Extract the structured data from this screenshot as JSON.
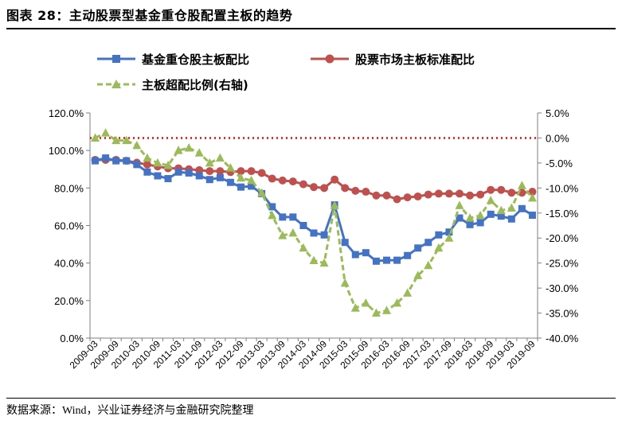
{
  "title": "图表 28：主动股票型基金重仓股配置主板的趋势",
  "source": "数据来源：Wind，兴业证券经济与金融研究院整理",
  "colors": {
    "series1": "#4472C4",
    "series2": "#C0504D",
    "series3": "#9BBB59",
    "zero_line": "#FF0000",
    "axis": "#7F7F7F"
  },
  "chart_data": {
    "type": "line",
    "categories": [
      "2009-03",
      "2009-06",
      "2009-09",
      "2009-12",
      "2010-03",
      "2010-06",
      "2010-09",
      "2010-12",
      "2011-03",
      "2011-06",
      "2011-09",
      "2011-12",
      "2012-03",
      "2012-06",
      "2012-09",
      "2012-12",
      "2013-03",
      "2013-06",
      "2013-09",
      "2013-12",
      "2014-03",
      "2014-06",
      "2014-09",
      "2014-12",
      "2015-03",
      "2015-06",
      "2015-09",
      "2015-12",
      "2016-03",
      "2016-06",
      "2016-09",
      "2016-12",
      "2017-03",
      "2017-06",
      "2017-09",
      "2017-12",
      "2018-03",
      "2018-06",
      "2018-09",
      "2018-12",
      "2019-03",
      "2019-06",
      "2019-09"
    ],
    "xtick_labels": [
      "2009-03",
      "2009-09",
      "2010-03",
      "2010-09",
      "2011-03",
      "2011-09",
      "2012-03",
      "2012-09",
      "2013-03",
      "2013-09",
      "2014-03",
      "2014-09",
      "2015-03",
      "2015-09",
      "2016-03",
      "2016-09",
      "2017-03",
      "2017-09",
      "2018-03",
      "2018-09",
      "2019-03",
      "2019-09"
    ],
    "series": [
      {
        "name": "基金重仓股主板配比",
        "axis": "left",
        "marker": "square",
        "values": [
          94.5,
          96.0,
          94.5,
          94.5,
          92.5,
          88.5,
          86.5,
          85.0,
          88.5,
          88.0,
          86.5,
          84.5,
          85.5,
          83.0,
          80.5,
          81.0,
          77.0,
          70.0,
          64.5,
          64.5,
          60.0,
          56.0,
          55.0,
          71.0,
          51.0,
          44.5,
          45.5,
          41.0,
          41.5,
          41.5,
          44.0,
          48.0,
          51.0,
          55.0,
          56.5,
          64.0,
          60.5,
          61.5,
          66.0,
          65.0,
          63.5,
          69.0,
          65.5
        ]
      },
      {
        "name": "股票市场主板标准配比",
        "axis": "left",
        "marker": "circle",
        "values": [
          95.0,
          95.0,
          95.0,
          94.5,
          93.5,
          92.5,
          91.5,
          90.5,
          90.5,
          90.0,
          89.5,
          89.0,
          89.0,
          88.5,
          89.0,
          89.0,
          88.0,
          85.0,
          84.0,
          83.5,
          82.0,
          80.5,
          80.0,
          84.5,
          80.0,
          78.5,
          78.0,
          76.0,
          76.0,
          74.0,
          75.0,
          75.5,
          76.5,
          77.0,
          77.0,
          77.0,
          76.0,
          76.5,
          79.0,
          79.0,
          77.5,
          77.5,
          78.0
        ]
      },
      {
        "name": "主板超配比例(右轴)",
        "axis": "right",
        "marker": "triangle",
        "values": [
          0.0,
          1.0,
          -0.5,
          -0.5,
          -1.5,
          -4.0,
          -5.0,
          -5.5,
          -2.5,
          -2.0,
          -3.0,
          -5.0,
          -4.0,
          -6.0,
          -8.0,
          -8.5,
          -11.0,
          -15.5,
          -19.5,
          -19.0,
          -22.0,
          -24.5,
          -25.0,
          -13.5,
          -29.0,
          -34.0,
          -33.0,
          -35.0,
          -34.5,
          -33.0,
          -31.0,
          -27.5,
          -25.5,
          -22.0,
          -20.0,
          -13.5,
          -16.0,
          -15.5,
          -12.5,
          -14.5,
          -14.0,
          -9.5,
          -12.0
        ]
      }
    ],
    "yaxis_left": {
      "min": 0,
      "max": 120,
      "step": 20,
      "tick_labels": [
        "0.0%",
        "20.0%",
        "40.0%",
        "60.0%",
        "80.0%",
        "100.0%",
        "120.0%"
      ]
    },
    "yaxis_right": {
      "min": -40,
      "max": 5,
      "step": 5,
      "tick_labels": [
        "-40.0%",
        "-35.0%",
        "-30.0%",
        "-25.0%",
        "-20.0%",
        "-15.0%",
        "-10.0%",
        "-5.0%",
        "0.0%",
        "5.0%"
      ]
    },
    "reference_line": {
      "axis": "right",
      "value": 0
    },
    "legend": {
      "position": "top-left",
      "entries": [
        "基金重仓股主板配比",
        "股票市场主板标准配比",
        "主板超配比例(右轴)"
      ]
    },
    "grid": false
  }
}
